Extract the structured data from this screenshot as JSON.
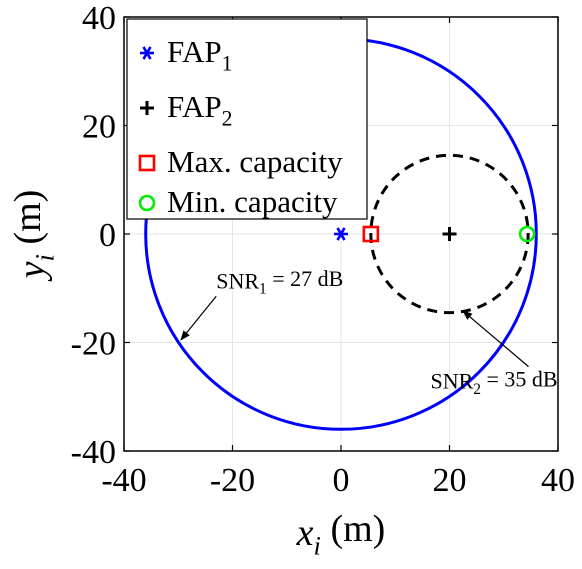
{
  "chart_data": {
    "type": "scatter",
    "title": "",
    "xlabel": {
      "main": "x",
      "sub": "i",
      "unit": " (m)"
    },
    "ylabel": {
      "main": "y",
      "sub": "i",
      "unit": " (m)"
    },
    "xlim": [
      -40,
      40
    ],
    "ylim": [
      -40,
      40
    ],
    "xticks": [
      -40,
      -20,
      0,
      20,
      40
    ],
    "yticks": [
      -40,
      -20,
      0,
      20,
      40
    ],
    "grid": true,
    "legend_position": "top-left",
    "series": [
      {
        "name": "FAP",
        "sub": "1",
        "marker": "asterisk",
        "color": "#0000ff",
        "points": [
          [
            0,
            0
          ]
        ]
      },
      {
        "name": "FAP",
        "sub": "2",
        "marker": "plus",
        "color": "#000000",
        "points": [
          [
            20,
            0
          ]
        ]
      },
      {
        "name": "Max. capacity",
        "marker": "square",
        "color": "#ff0000",
        "points": [
          [
            5.5,
            0
          ]
        ]
      },
      {
        "name": "Min. capacity",
        "marker": "circle",
        "color": "#00ee00",
        "points": [
          [
            34.3,
            0
          ]
        ]
      }
    ],
    "circles": [
      {
        "center": [
          0,
          0
        ],
        "radius": 36,
        "color": "#0000ff",
        "style": "solid"
      },
      {
        "center": [
          20,
          0
        ],
        "radius": 14.5,
        "color": "#000000",
        "style": "dashed"
      }
    ],
    "annotations": [
      {
        "text_main": "SNR",
        "text_sub": "1",
        "text_rest": " = 27 dB",
        "xy": [
          -29.5,
          -19.5
        ],
        "text_xy": [
          -23,
          -10
        ]
      },
      {
        "text_main": "SNR",
        "text_sub": "2",
        "text_rest": " = 35 dB",
        "xy": [
          22.5,
          -14.2
        ],
        "text_xy": [
          16.5,
          -28.5
        ]
      }
    ]
  }
}
